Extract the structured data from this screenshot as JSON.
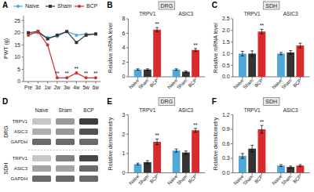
{
  "chart_data": [
    {
      "type": "line",
      "title": "A",
      "categories": [
        "Pre",
        "3d",
        "1w",
        "2w",
        "3w",
        "4w",
        "5w",
        "6w"
      ],
      "series": [
        {
          "name": "Naive",
          "color": "#4EA8D8",
          "marker": "circle",
          "values": [
            19.5,
            20.0,
            18.0,
            18.5,
            20.5,
            19.0,
            19.5,
            19.5
          ]
        },
        {
          "name": "Sham",
          "color": "#333333",
          "marker": "square",
          "values": [
            20.0,
            20.5,
            17.5,
            19.0,
            20.5,
            16.0,
            19.0,
            19.5
          ]
        },
        {
          "name": "BCP",
          "color": "#D92B2B",
          "marker": "circle",
          "values": [
            19.0,
            20.5,
            15.0,
            1.5,
            1.5,
            3.5,
            1.5,
            1.5
          ]
        }
      ],
      "annotations": [
        {
          "text": "**",
          "category": "2w",
          "series": "BCP"
        },
        {
          "text": "**",
          "category": "3w",
          "series": "BCP"
        },
        {
          "text": "**",
          "category": "4w",
          "series": "BCP"
        },
        {
          "text": "**",
          "category": "5w",
          "series": "BCP"
        },
        {
          "text": "**",
          "category": "6w",
          "series": "BCP"
        }
      ],
      "ylabel": "PWT (g)",
      "ylim": [
        0,
        27
      ],
      "yticks": [
        0,
        5,
        10,
        15,
        20,
        25
      ],
      "legend": "upper right"
    },
    {
      "type": "bar",
      "title": "B",
      "subtitle": "DRG",
      "categories": [
        "TRPV1",
        "ASIC3"
      ],
      "series": [
        {
          "name": "Naive",
          "color": "#4EA8D8",
          "values": [
            1.0,
            1.0
          ],
          "errors": [
            0.1,
            0.1
          ]
        },
        {
          "name": "Sham",
          "color": "#333333",
          "values": [
            1.0,
            0.7
          ],
          "errors": [
            0.1,
            0.1
          ]
        },
        {
          "name": "BCP",
          "color": "#D92B2B",
          "values": [
            6.5,
            3.7
          ],
          "errors": [
            0.3,
            0.2
          ]
        }
      ],
      "annotations": [
        {
          "text": "**",
          "category": "TRPV1",
          "series": "BCP"
        },
        {
          "text": "**",
          "category": "ASIC3",
          "series": "BCP"
        }
      ],
      "ylabel": "Relative mRNA level",
      "ylim": [
        0,
        8
      ],
      "yticks": [
        0,
        2,
        4,
        6,
        8
      ]
    },
    {
      "type": "bar",
      "title": "C",
      "subtitle": "SDH",
      "categories": [
        "TRPV1",
        "ASIC3"
      ],
      "series": [
        {
          "name": "Naive",
          "color": "#4EA8D8",
          "values": [
            1.0,
            1.0
          ],
          "errors": [
            0.1,
            0.05
          ]
        },
        {
          "name": "Sham",
          "color": "#333333",
          "values": [
            1.0,
            1.05
          ],
          "errors": [
            0.12,
            0.08
          ]
        },
        {
          "name": "BCP",
          "color": "#D92B2B",
          "values": [
            1.95,
            1.35
          ],
          "errors": [
            0.1,
            0.1
          ]
        }
      ],
      "annotations": [
        {
          "text": "**",
          "category": "TRPV1",
          "series": "BCP"
        }
      ],
      "ylabel": "Relative mRNA level",
      "ylim": [
        0,
        2.5
      ],
      "yticks": [
        {
          "value": 0,
          "label": "0.0"
        },
        0.5,
        {
          "value": 1,
          "label": "1.0"
        },
        1.5,
        {
          "value": 2,
          "label": "2.0"
        },
        2.5
      ]
    },
    {
      "type": "blot",
      "title": "D",
      "columns": [
        "Naive",
        "Sham",
        "BCP"
      ],
      "sections": [
        {
          "name": "DRG",
          "rows": [
            "TRPV1",
            "ASIC3",
            "GAPDH"
          ],
          "values": [
            [
              0.25,
              0.45,
              0.85
            ],
            [
              0.35,
              0.45,
              0.75
            ],
            [
              0.65,
              0.65,
              0.65
            ]
          ]
        },
        {
          "name": "SDH",
          "rows": [
            "TRPV1",
            "ASIC3",
            "GAPDH"
          ],
          "values": [
            [
              0.25,
              0.55,
              0.8
            ],
            [
              0.4,
              0.4,
              0.65
            ],
            [
              0.65,
              0.65,
              0.65
            ]
          ]
        }
      ]
    },
    {
      "type": "bar",
      "title": "E",
      "subtitle": "DRG",
      "categories": [
        "TRPV1",
        "ASIC3"
      ],
      "series": [
        {
          "name": "Naive",
          "color": "#4EA8D8",
          "values": [
            0.45,
            1.15
          ],
          "errors": [
            0.05,
            0.08
          ]
        },
        {
          "name": "Sham",
          "color": "#333333",
          "values": [
            0.55,
            1.05
          ],
          "errors": [
            0.08,
            0.08
          ]
        },
        {
          "name": "BCP",
          "color": "#D92B2B",
          "values": [
            1.6,
            2.2
          ],
          "errors": [
            0.15,
            0.1
          ]
        }
      ],
      "annotations": [
        {
          "text": "**",
          "category": "TRPV1",
          "series": "BCP"
        },
        {
          "text": "**",
          "category": "ASIC3",
          "series": "BCP"
        }
      ],
      "ylabel": "Relative densitometry",
      "ylim": [
        0,
        3.0
      ],
      "yticks": [
        0,
        1,
        2,
        3
      ]
    },
    {
      "type": "bar",
      "title": "F",
      "subtitle": "SDH",
      "categories": [
        "TRPV1",
        "ASIC3"
      ],
      "series": [
        {
          "name": "Naive",
          "color": "#4EA8D8",
          "values": [
            0.35,
            0.15
          ],
          "errors": [
            0.05,
            0.02
          ]
        },
        {
          "name": "Sham",
          "color": "#333333",
          "values": [
            0.5,
            0.12
          ],
          "errors": [
            0.07,
            0.02
          ]
        },
        {
          "name": "BCP",
          "color": "#D92B2B",
          "values": [
            0.9,
            0.15
          ],
          "errors": [
            0.08,
            0.02
          ]
        }
      ],
      "annotations": [
        {
          "text": "**",
          "category": "TRPV1",
          "series": "BCP"
        }
      ],
      "ylabel": "Relative densitometry",
      "ylim": [
        0,
        1.2
      ],
      "yticks": [
        {
          "value": 0,
          "label": "0.0"
        },
        0.3,
        0.6,
        0.9,
        1.2
      ]
    }
  ]
}
